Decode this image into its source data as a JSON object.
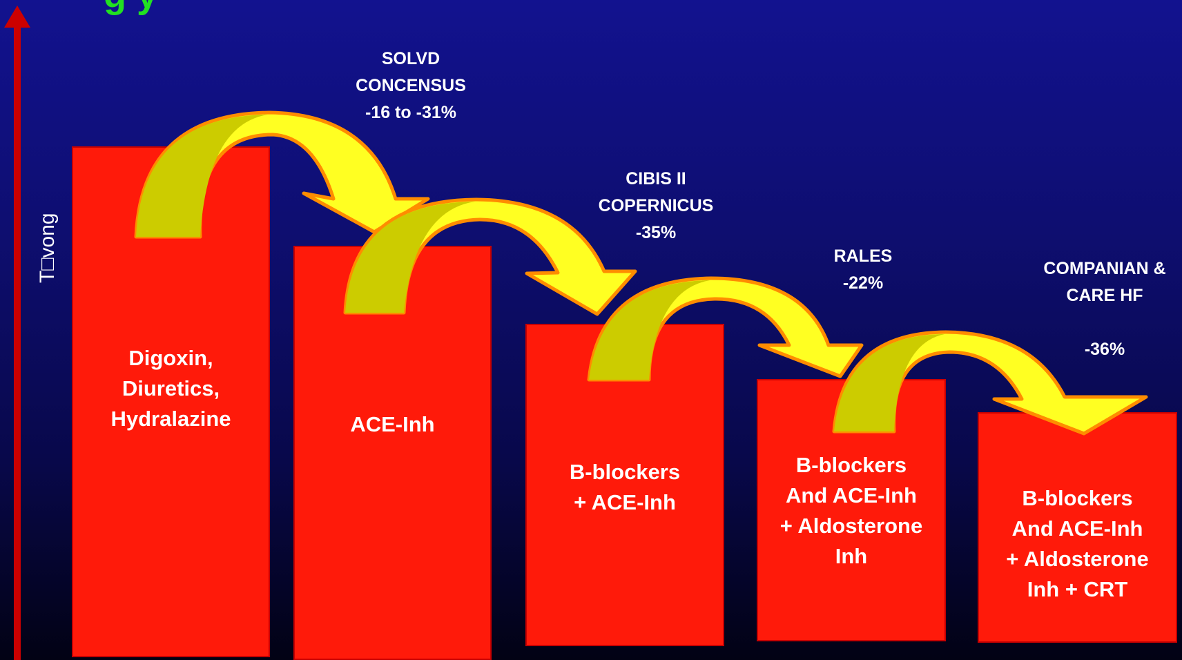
{
  "title_partial": "g           y",
  "y_axis_label": "T□vong",
  "colors": {
    "bar_fill": "#ff1a0a",
    "arrow_fill": "#ffff22",
    "arrow_inner": "#cccc00",
    "arrow_outline": "#ff8c00",
    "axis_arrow": "#cc0000",
    "title": "#22e022"
  },
  "stages": [
    {
      "label": "Digoxin,\nDiuretics,\nHydralazine"
    },
    {
      "label": "ACE-Inh"
    },
    {
      "label": "B-blockers\n+ ACE-Inh"
    },
    {
      "label": "B-blockers\nAnd ACE-Inh\n+ Aldosterone\nInh"
    },
    {
      "label": "B-blockers\nAnd ACE-Inh\n+ Aldosterone\nInh + CRT"
    }
  ],
  "trials": [
    {
      "label": "SOLVD\nCONCENSUS\n-16  to -31%"
    },
    {
      "label": "CIBIS II\nCOPERNICUS\n-35%"
    },
    {
      "label": "RALES\n-22%"
    },
    {
      "label": "COMPANIAN &\nCARE HF\n\n-36%"
    }
  ]
}
